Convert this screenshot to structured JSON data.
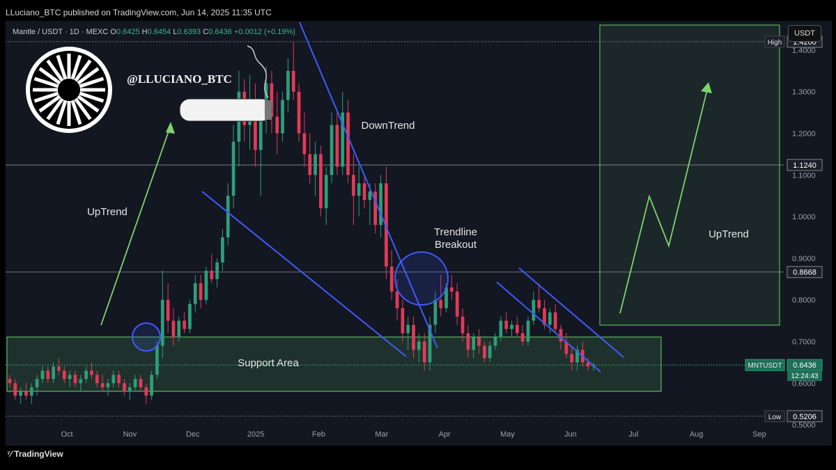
{
  "publish_line": "LLuciano_BTC published on TradingView.com, Jun 14, 2025 11:35 UTC",
  "symbol": {
    "name": "Mantle / USDT · 1D · MEXC",
    "o_label": "O",
    "o": "0.6425",
    "h_label": "H",
    "h": "0.6454",
    "l_label": "L",
    "l": "0.6393",
    "c_label": "C",
    "c": "0.6436",
    "change": "+0.0012 (+0.19%)"
  },
  "handle": "@LLUCIANO_BTC",
  "currency_button": "USDT",
  "footer_logo": "TradingView",
  "colors": {
    "up": "#2e9e7a",
    "down": "#e23a57",
    "trendline": "#3f5bff",
    "zone": "#6bd36b",
    "arrow": "#7ed36f"
  },
  "chart_data": {
    "type": "candlestick",
    "ylim": [
      0.45,
      1.47
    ],
    "y_ticks": [
      "1.4000",
      "1.3000",
      "1.2000",
      "1.1000",
      "1.0000",
      "0.9000",
      "0.8000",
      "0.7000",
      "0.6000",
      "0.5000"
    ],
    "y_tick_values": [
      1.4,
      1.3,
      1.2,
      1.1,
      1.0,
      0.9,
      0.8,
      0.7,
      0.6,
      0.5
    ],
    "x_ticks": [
      "Oct",
      "Nov",
      "Dec",
      "2025",
      "Feb",
      "Mar",
      "Apr",
      "May",
      "Jun",
      "Jul",
      "Aug",
      "Sep"
    ],
    "price_markers": [
      {
        "label": "High",
        "value": "1.4200",
        "y": 1.42
      },
      {
        "label": "",
        "value": "1.1240",
        "y": 1.124
      },
      {
        "label": "",
        "value": "0.8668",
        "y": 0.8668
      },
      {
        "label": "MNTUSDT",
        "value": "0.6436",
        "countdown": "12:24:43",
        "y": 0.6436
      },
      {
        "label": "Low",
        "value": "0.5206",
        "y": 0.5206
      }
    ],
    "annotations": {
      "uptrend_left": "UpTrend",
      "downtrend": "DownTrend",
      "breakout": "Trendline\nBreakout",
      "support": "Support Area",
      "uptrend_right": "UpTrend"
    },
    "candles": [
      [
        0.61,
        0.62,
        0.59,
        0.6
      ],
      [
        0.6,
        0.61,
        0.56,
        0.57
      ],
      [
        0.57,
        0.59,
        0.55,
        0.58
      ],
      [
        0.58,
        0.6,
        0.56,
        0.57
      ],
      [
        0.57,
        0.6,
        0.55,
        0.59
      ],
      [
        0.59,
        0.62,
        0.57,
        0.61
      ],
      [
        0.61,
        0.64,
        0.6,
        0.63
      ],
      [
        0.63,
        0.64,
        0.6,
        0.61
      ],
      [
        0.61,
        0.65,
        0.6,
        0.64
      ],
      [
        0.64,
        0.66,
        0.62,
        0.63
      ],
      [
        0.63,
        0.64,
        0.6,
        0.61
      ],
      [
        0.61,
        0.63,
        0.59,
        0.62
      ],
      [
        0.62,
        0.63,
        0.59,
        0.6
      ],
      [
        0.6,
        0.62,
        0.58,
        0.61
      ],
      [
        0.61,
        0.64,
        0.6,
        0.63
      ],
      [
        0.63,
        0.65,
        0.61,
        0.62
      ],
      [
        0.62,
        0.63,
        0.59,
        0.6
      ],
      [
        0.6,
        0.62,
        0.58,
        0.59
      ],
      [
        0.59,
        0.61,
        0.57,
        0.6
      ],
      [
        0.6,
        0.63,
        0.59,
        0.62
      ],
      [
        0.62,
        0.63,
        0.59,
        0.6
      ],
      [
        0.6,
        0.61,
        0.57,
        0.58
      ],
      [
        0.58,
        0.6,
        0.56,
        0.59
      ],
      [
        0.59,
        0.62,
        0.58,
        0.61
      ],
      [
        0.61,
        0.62,
        0.58,
        0.59
      ],
      [
        0.59,
        0.6,
        0.55,
        0.57
      ],
      [
        0.57,
        0.63,
        0.56,
        0.62
      ],
      [
        0.62,
        0.7,
        0.61,
        0.69
      ],
      [
        0.69,
        0.87,
        0.66,
        0.8
      ],
      [
        0.8,
        0.84,
        0.72,
        0.75
      ],
      [
        0.75,
        0.78,
        0.69,
        0.71
      ],
      [
        0.71,
        0.76,
        0.7,
        0.75
      ],
      [
        0.75,
        0.77,
        0.72,
        0.73
      ],
      [
        0.73,
        0.8,
        0.72,
        0.79
      ],
      [
        0.79,
        0.86,
        0.77,
        0.84
      ],
      [
        0.84,
        0.86,
        0.78,
        0.8
      ],
      [
        0.8,
        0.88,
        0.79,
        0.87
      ],
      [
        0.87,
        0.91,
        0.84,
        0.85
      ],
      [
        0.85,
        0.9,
        0.83,
        0.89
      ],
      [
        0.89,
        0.97,
        0.87,
        0.95
      ],
      [
        0.95,
        1.08,
        0.93,
        1.05
      ],
      [
        1.05,
        1.22,
        1.02,
        1.18
      ],
      [
        1.18,
        1.35,
        1.12,
        1.3
      ],
      [
        1.3,
        1.33,
        1.18,
        1.22
      ],
      [
        1.22,
        1.34,
        1.16,
        1.28
      ],
      [
        1.28,
        1.32,
        1.12,
        1.16
      ],
      [
        1.16,
        1.28,
        1.05,
        1.25
      ],
      [
        1.25,
        1.36,
        1.2,
        1.32
      ],
      [
        1.32,
        1.35,
        1.2,
        1.24
      ],
      [
        1.24,
        1.3,
        1.15,
        1.2
      ],
      [
        1.2,
        1.3,
        1.18,
        1.28
      ],
      [
        1.28,
        1.38,
        1.25,
        1.35
      ],
      [
        1.35,
        1.42,
        1.28,
        1.3
      ],
      [
        1.3,
        1.32,
        1.18,
        1.2
      ],
      [
        1.2,
        1.25,
        1.12,
        1.15
      ],
      [
        1.15,
        1.2,
        1.08,
        1.1
      ],
      [
        1.1,
        1.18,
        1.05,
        1.15
      ],
      [
        1.15,
        1.17,
        1.0,
        1.02
      ],
      [
        1.02,
        1.12,
        0.98,
        1.1
      ],
      [
        1.1,
        1.25,
        1.08,
        1.22
      ],
      [
        1.22,
        1.25,
        1.1,
        1.12
      ],
      [
        1.12,
        1.3,
        1.1,
        1.25
      ],
      [
        1.25,
        1.28,
        1.08,
        1.1
      ],
      [
        1.1,
        1.15,
        0.98,
        1.05
      ],
      [
        1.05,
        1.12,
        1.0,
        1.08
      ],
      [
        1.08,
        1.1,
        1.02,
        1.04
      ],
      [
        1.04,
        1.08,
        0.98,
        1.06
      ],
      [
        1.06,
        1.08,
        0.96,
        0.98
      ],
      [
        0.98,
        1.1,
        0.95,
        1.08
      ],
      [
        1.08,
        1.12,
        0.85,
        0.88
      ],
      [
        0.88,
        0.92,
        0.8,
        0.82
      ],
      [
        0.82,
        0.85,
        0.75,
        0.78
      ],
      [
        0.78,
        0.8,
        0.7,
        0.72
      ],
      [
        0.72,
        0.76,
        0.68,
        0.74
      ],
      [
        0.74,
        0.76,
        0.66,
        0.68
      ],
      [
        0.68,
        0.72,
        0.65,
        0.7
      ],
      [
        0.7,
        0.72,
        0.63,
        0.65
      ],
      [
        0.65,
        0.76,
        0.63,
        0.74
      ],
      [
        0.74,
        0.82,
        0.72,
        0.8
      ],
      [
        0.8,
        0.86,
        0.76,
        0.78
      ],
      [
        0.78,
        0.84,
        0.77,
        0.83
      ],
      [
        0.83,
        0.86,
        0.8,
        0.82
      ],
      [
        0.82,
        0.84,
        0.74,
        0.76
      ],
      [
        0.76,
        0.78,
        0.7,
        0.72
      ],
      [
        0.72,
        0.74,
        0.66,
        0.68
      ],
      [
        0.68,
        0.72,
        0.66,
        0.71
      ],
      [
        0.71,
        0.73,
        0.67,
        0.69
      ],
      [
        0.69,
        0.7,
        0.65,
        0.66
      ],
      [
        0.66,
        0.7,
        0.65,
        0.69
      ],
      [
        0.69,
        0.72,
        0.68,
        0.71
      ],
      [
        0.71,
        0.76,
        0.7,
        0.75
      ],
      [
        0.75,
        0.77,
        0.72,
        0.73
      ],
      [
        0.73,
        0.75,
        0.71,
        0.74
      ],
      [
        0.74,
        0.76,
        0.71,
        0.72
      ],
      [
        0.72,
        0.74,
        0.69,
        0.7
      ],
      [
        0.7,
        0.76,
        0.69,
        0.75
      ],
      [
        0.75,
        0.82,
        0.74,
        0.8
      ],
      [
        0.8,
        0.84,
        0.77,
        0.78
      ],
      [
        0.78,
        0.8,
        0.73,
        0.74
      ],
      [
        0.74,
        0.78,
        0.72,
        0.77
      ],
      [
        0.77,
        0.79,
        0.72,
        0.73
      ],
      [
        0.73,
        0.74,
        0.68,
        0.7
      ],
      [
        0.7,
        0.72,
        0.66,
        0.67
      ],
      [
        0.67,
        0.69,
        0.63,
        0.65
      ],
      [
        0.65,
        0.69,
        0.63,
        0.68
      ],
      [
        0.68,
        0.7,
        0.64,
        0.65
      ],
      [
        0.65,
        0.66,
        0.63,
        0.64
      ],
      [
        0.64,
        0.65,
        0.63,
        0.6436
      ]
    ]
  }
}
